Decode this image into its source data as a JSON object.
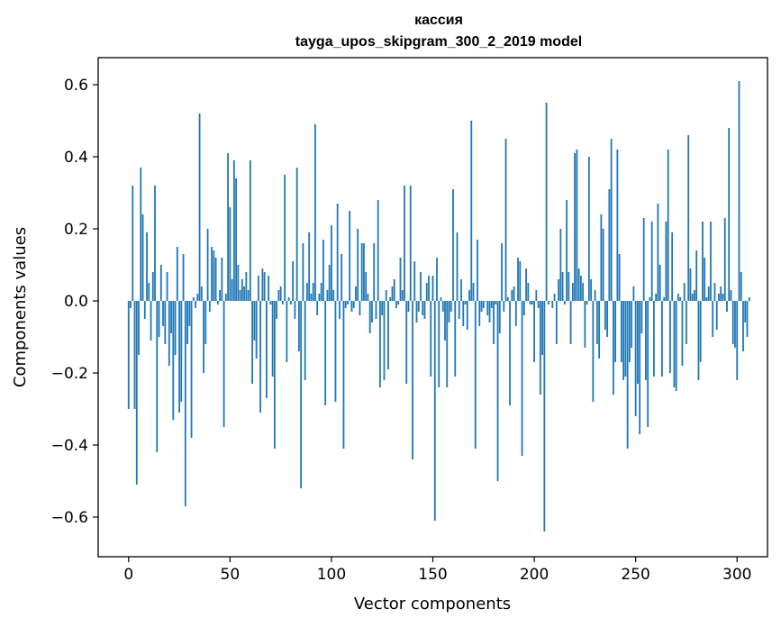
{
  "chart_data": {
    "type": "bar",
    "title_line1": "кассия",
    "title_line2": "tayga_upos_skipgram_300_2_2019 model",
    "xlabel": "Vector components",
    "ylabel": "Components values",
    "xlim": [
      -15,
      315
    ],
    "ylim": [
      -0.71,
      0.675
    ],
    "xticks": [
      0,
      50,
      100,
      150,
      200,
      250,
      300
    ],
    "xtick_labels": [
      "0",
      "50",
      "100",
      "150",
      "200",
      "250",
      "300"
    ],
    "yticks": [
      -0.6,
      -0.4,
      -0.2,
      0.0,
      0.2,
      0.4,
      0.6
    ],
    "ytick_labels": [
      "−0.6",
      "−0.4",
      "−0.2",
      "0.0",
      "0.2",
      "0.4",
      "0.6"
    ],
    "bar_color": "#1f77b4",
    "values": [
      -0.3,
      -0.02,
      0.32,
      -0.3,
      -0.51,
      -0.15,
      0.37,
      0.24,
      -0.05,
      0.19,
      0.05,
      -0.11,
      0.08,
      0.32,
      -0.42,
      -0.1,
      0.1,
      -0.07,
      -0.12,
      0.08,
      -0.18,
      -0.09,
      -0.33,
      -0.15,
      0.15,
      -0.31,
      -0.28,
      0.13,
      -0.57,
      -0.12,
      -0.07,
      -0.38,
      0.01,
      -0.02,
      0.02,
      0.52,
      0.04,
      -0.2,
      -0.12,
      0.2,
      -0.03,
      0.15,
      0.14,
      0.12,
      -0.01,
      0.03,
      0.12,
      -0.35,
      0.02,
      0.41,
      0.26,
      0.06,
      0.39,
      0.34,
      0.1,
      0.03,
      0.06,
      0.04,
      0.08,
      0.03,
      0.39,
      -0.23,
      -0.11,
      -0.16,
      0.07,
      -0.31,
      0.09,
      0.08,
      -0.27,
      0.07,
      -0.01,
      -0.21,
      -0.41,
      -0.05,
      0.03,
      0.04,
      -0.01,
      0.35,
      -0.17,
      0.01,
      -0.01,
      0.11,
      -0.05,
      0.37,
      -0.14,
      -0.52,
      0.16,
      -0.22,
      0.05,
      0.19,
      0.02,
      0.05,
      0.49,
      -0.04,
      0.02,
      0.05,
      0.17,
      -0.29,
      0.03,
      0.1,
      0.21,
      0.03,
      -0.28,
      0.27,
      -0.05,
      0.13,
      -0.41,
      -0.02,
      -0.01,
      0.25,
      -0.03,
      -0.02,
      0.04,
      0.2,
      -0.04,
      0.16,
      0.16,
      0.08,
      0.02,
      -0.09,
      -0.06,
      0.16,
      -0.05,
      0.28,
      -0.24,
      -0.04,
      -0.22,
      0.03,
      -0.19,
      0.01,
      0.04,
      0.06,
      -0.02,
      -0.01,
      0.12,
      0.03,
      0.32,
      -0.23,
      -0.03,
      0.32,
      -0.44,
      0.11,
      -0.06,
      -0.03,
      0.08,
      -0.04,
      -0.05,
      0.05,
      0.07,
      -0.21,
      0.07,
      -0.61,
      0.12,
      -0.24,
      0.01,
      -0.03,
      -0.11,
      -0.24,
      -0.06,
      -0.03,
      0.31,
      -0.21,
      0.19,
      -0.05,
      0.06,
      -0.07,
      -0.01,
      -0.08,
      0.03,
      0.5,
      0.05,
      -0.41,
      0.17,
      -0.07,
      -0.03,
      -0.02,
      0.0,
      -0.04,
      -0.06,
      -0.02,
      -0.12,
      -0.01,
      -0.5,
      -0.09,
      0.16,
      -0.03,
      0.45,
      0.01,
      -0.29,
      0.03,
      0.04,
      -0.07,
      0.12,
      0.11,
      -0.43,
      -0.04,
      0.09,
      0.05,
      -0.01,
      -0.01,
      -0.17,
      0.03,
      -0.02,
      -0.26,
      -0.15,
      -0.64,
      0.55,
      -0.01,
      0.0,
      -0.02,
      0.02,
      -0.12,
      0.06,
      0.2,
      0.08,
      -0.01,
      0.28,
      0.08,
      -0.12,
      0.05,
      0.41,
      0.42,
      0.09,
      0.07,
      0.05,
      -0.13,
      -0.01,
      0.4,
      0.06,
      -0.28,
      0.03,
      -0.12,
      -0.16,
      0.24,
      0.2,
      -0.08,
      -0.1,
      0.31,
      0.45,
      -0.26,
      -0.17,
      0.42,
      0.13,
      -0.17,
      -0.22,
      -0.21,
      -0.41,
      -0.17,
      -0.13,
      0.04,
      -0.32,
      -0.23,
      -0.37,
      -0.09,
      0.23,
      -0.22,
      -0.35,
      0.01,
      0.22,
      -0.21,
      0.02,
      0.27,
      0.1,
      -0.21,
      0.01,
      0.22,
      0.42,
      -0.2,
      0.19,
      -0.24,
      -0.25,
      0.02,
      0.01,
      -0.18,
      0.05,
      -0.12,
      0.46,
      0.09,
      0.02,
      0.03,
      0.14,
      -0.22,
      -0.17,
      0.22,
      0.12,
      0.01,
      0.04,
      0.22,
      -0.1,
      0.05,
      -0.08,
      0.02,
      0.04,
      0.02,
      0.23,
      -0.03,
      0.48,
      0.03,
      -0.12,
      -0.13,
      -0.22,
      0.61,
      0.08,
      -0.14,
      -0.06,
      -0.1,
      0.01
    ]
  }
}
